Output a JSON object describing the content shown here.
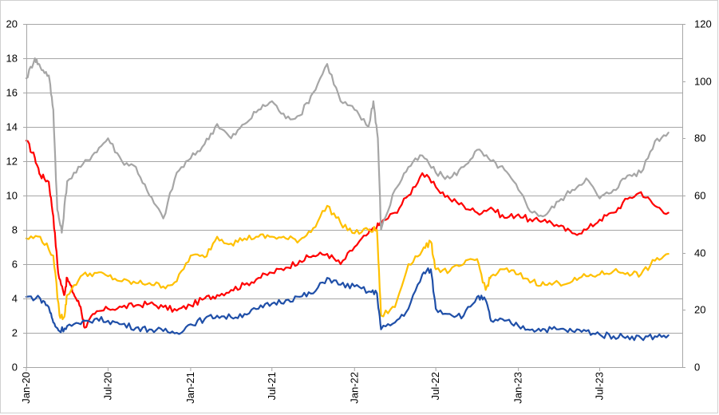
{
  "chart_data": {
    "type": "line",
    "grid": true,
    "legend": "none",
    "x_tick_labels": [
      "Jan-20",
      "Jul-20",
      "Jan-21",
      "Jul-21",
      "Jan-22",
      "Jul-22",
      "Jan-23",
      "Jul-23"
    ],
    "x_tick_dates": [
      "2020-01",
      "2020-07",
      "2021-01",
      "2021-07",
      "2022-01",
      "2022-07",
      "2023-01",
      "2023-07"
    ],
    "xlim": [
      "2020-01",
      "2023-12"
    ],
    "y_left": {
      "min": 0,
      "max": 20,
      "step": 2,
      "ticks": [
        "0",
        "2",
        "4",
        "6",
        "8",
        "10",
        "12",
        "14",
        "16",
        "18",
        "20"
      ]
    },
    "y_right": {
      "min": 0,
      "max": 120,
      "step": 20,
      "ticks": [
        "0",
        "20",
        "40",
        "60",
        "80",
        "100",
        "120"
      ]
    },
    "series": [
      {
        "color": "#ff0000",
        "axis": "left",
        "points": [
          [
            "2020-01",
            13.2
          ],
          [
            "2020-01-20",
            12.2
          ],
          [
            "2020-02",
            11.2
          ],
          [
            "2020-02-20",
            10.8
          ],
          [
            "2020-03",
            8.8
          ],
          [
            "2020-03-12",
            5.5
          ],
          [
            "2020-03-25",
            4.2
          ],
          [
            "2020-04",
            5.2
          ],
          [
            "2020-04-15",
            4.3
          ],
          [
            "2020-05",
            3.5
          ],
          [
            "2020-05-10",
            2.3
          ],
          [
            "2020-06",
            3.1
          ],
          [
            "2020-07",
            3.4
          ],
          [
            "2020-08",
            3.5
          ],
          [
            "2020-09",
            3.6
          ],
          [
            "2020-10",
            3.7
          ],
          [
            "2020-11",
            3.5
          ],
          [
            "2020-12",
            3.3
          ],
          [
            "2021-01",
            3.6
          ],
          [
            "2021-02",
            4.0
          ],
          [
            "2021-03",
            4.2
          ],
          [
            "2021-04",
            4.5
          ],
          [
            "2021-05",
            4.8
          ],
          [
            "2021-06",
            5.2
          ],
          [
            "2021-07",
            5.5
          ],
          [
            "2021-08",
            5.8
          ],
          [
            "2021-09",
            6.2
          ],
          [
            "2021-10",
            6.5
          ],
          [
            "2021-11",
            6.6
          ],
          [
            "2021-12",
            6.0
          ],
          [
            "2022-01",
            7.0
          ],
          [
            "2022-02",
            7.8
          ],
          [
            "2022-02-20",
            8.2
          ],
          [
            "2022-03",
            8.4
          ],
          [
            "2022-04",
            9.0
          ],
          [
            "2022-05",
            10.0
          ],
          [
            "2022-06",
            11.3
          ],
          [
            "2022-07",
            10.5
          ],
          [
            "2022-08",
            9.8
          ],
          [
            "2022-09",
            9.4
          ],
          [
            "2022-10",
            9.0
          ],
          [
            "2022-11",
            9.3
          ],
          [
            "2022-12",
            8.7
          ],
          [
            "2023-01",
            8.9
          ],
          [
            "2023-02",
            8.5
          ],
          [
            "2023-03",
            8.6
          ],
          [
            "2023-04",
            8.2
          ],
          [
            "2023-05",
            7.8
          ],
          [
            "2023-06",
            8.0
          ],
          [
            "2023-07",
            8.6
          ],
          [
            "2023-08",
            9.0
          ],
          [
            "2023-09",
            9.8
          ],
          [
            "2023-10",
            10.2
          ],
          [
            "2023-11",
            9.4
          ],
          [
            "2023-12",
            9.0
          ]
        ]
      },
      {
        "color": "#a6a6a6",
        "axis": "right",
        "points": [
          [
            "2020-01",
            101
          ],
          [
            "2020-01-20",
            108
          ],
          [
            "2020-02",
            105
          ],
          [
            "2020-02-20",
            102
          ],
          [
            "2020-03",
            90
          ],
          [
            "2020-03-10",
            55
          ],
          [
            "2020-03-20",
            47
          ],
          [
            "2020-04",
            65
          ],
          [
            "2020-05",
            70
          ],
          [
            "2020-06",
            75
          ],
          [
            "2020-07",
            80
          ],
          [
            "2020-08",
            72
          ],
          [
            "2020-09",
            70
          ],
          [
            "2020-10",
            60
          ],
          [
            "2020-11",
            52
          ],
          [
            "2020-12",
            68
          ],
          [
            "2021-01",
            73
          ],
          [
            "2021-02",
            78
          ],
          [
            "2021-03",
            85
          ],
          [
            "2021-04",
            80
          ],
          [
            "2021-05",
            85
          ],
          [
            "2021-06",
            90
          ],
          [
            "2021-07",
            93
          ],
          [
            "2021-08",
            87
          ],
          [
            "2021-09",
            88
          ],
          [
            "2021-10",
            96
          ],
          [
            "2021-11",
            106
          ],
          [
            "2021-12",
            93
          ],
          [
            "2022-01",
            90
          ],
          [
            "2022-02",
            84
          ],
          [
            "2022-02-12",
            93
          ],
          [
            "2022-02-22",
            80
          ],
          [
            "2022-03",
            48
          ],
          [
            "2022-04",
            62
          ],
          [
            "2022-05",
            70
          ],
          [
            "2022-06",
            74
          ],
          [
            "2022-07",
            68
          ],
          [
            "2022-08",
            66
          ],
          [
            "2022-09",
            70
          ],
          [
            "2022-10",
            76
          ],
          [
            "2022-11",
            72
          ],
          [
            "2022-12",
            69
          ],
          [
            "2023-01",
            62
          ],
          [
            "2023-02",
            54
          ],
          [
            "2023-03",
            53
          ],
          [
            "2023-04",
            58
          ],
          [
            "2023-05",
            62
          ],
          [
            "2023-06",
            66
          ],
          [
            "2023-07",
            59
          ],
          [
            "2023-08",
            62
          ],
          [
            "2023-09",
            67
          ],
          [
            "2023-10",
            68
          ],
          [
            "2023-11",
            79
          ],
          [
            "2023-12",
            82
          ]
        ]
      },
      {
        "color": "#ffc000",
        "axis": "left",
        "points": [
          [
            "2020-01",
            7.5
          ],
          [
            "2020-02",
            7.6
          ],
          [
            "2020-03",
            6.5
          ],
          [
            "2020-03-15",
            3.0
          ],
          [
            "2020-03-25",
            2.9
          ],
          [
            "2020-04",
            4.2
          ],
          [
            "2020-05",
            5.3
          ],
          [
            "2020-06",
            5.5
          ],
          [
            "2020-07",
            5.3
          ],
          [
            "2020-08",
            5.0
          ],
          [
            "2020-09",
            4.9
          ],
          [
            "2020-10",
            4.9
          ],
          [
            "2020-11",
            4.7
          ],
          [
            "2020-12",
            5.0
          ],
          [
            "2021-01",
            6.5
          ],
          [
            "2021-02",
            6.4
          ],
          [
            "2021-03",
            7.6
          ],
          [
            "2021-04",
            7.2
          ],
          [
            "2021-05",
            7.5
          ],
          [
            "2021-06",
            7.6
          ],
          [
            "2021-07",
            7.6
          ],
          [
            "2021-08",
            7.5
          ],
          [
            "2021-09",
            7.4
          ],
          [
            "2021-10",
            8.1
          ],
          [
            "2021-11",
            9.4
          ],
          [
            "2021-12",
            8.4
          ],
          [
            "2022-01",
            7.8
          ],
          [
            "2022-02",
            8.0
          ],
          [
            "2022-02-20",
            8.0
          ],
          [
            "2022-03",
            3.0
          ],
          [
            "2022-04",
            3.5
          ],
          [
            "2022-05",
            6.0
          ],
          [
            "2022-06",
            6.8
          ],
          [
            "2022-06-20",
            7.3
          ],
          [
            "2022-07",
            5.7
          ],
          [
            "2022-08",
            5.6
          ],
          [
            "2022-09",
            6.0
          ],
          [
            "2022-10",
            6.3
          ],
          [
            "2022-10-20",
            4.5
          ],
          [
            "2022-11",
            5.3
          ],
          [
            "2022-12",
            5.7
          ],
          [
            "2023-01",
            5.4
          ],
          [
            "2023-02",
            5.0
          ],
          [
            "2023-03",
            4.8
          ],
          [
            "2023-04",
            4.9
          ],
          [
            "2023-05",
            5.0
          ],
          [
            "2023-06",
            5.3
          ],
          [
            "2023-07",
            5.4
          ],
          [
            "2023-08",
            5.6
          ],
          [
            "2023-09",
            5.5
          ],
          [
            "2023-10",
            5.4
          ],
          [
            "2023-11",
            6.2
          ],
          [
            "2023-12",
            6.6
          ]
        ]
      },
      {
        "color": "#1f4fa8",
        "axis": "left",
        "points": [
          [
            "2020-01",
            4.1
          ],
          [
            "2020-02",
            4.0
          ],
          [
            "2020-02-20",
            3.5
          ],
          [
            "2020-03",
            2.6
          ],
          [
            "2020-03-15",
            2.1
          ],
          [
            "2020-04",
            2.4
          ],
          [
            "2020-05",
            2.5
          ],
          [
            "2020-06",
            2.8
          ],
          [
            "2020-07",
            2.7
          ],
          [
            "2020-08",
            2.5
          ],
          [
            "2020-09",
            2.3
          ],
          [
            "2020-10",
            2.2
          ],
          [
            "2020-11",
            2.1
          ],
          [
            "2020-12",
            2.0
          ],
          [
            "2021-01",
            2.5
          ],
          [
            "2021-02",
            2.8
          ],
          [
            "2021-03",
            3.0
          ],
          [
            "2021-04",
            2.9
          ],
          [
            "2021-05",
            3.1
          ],
          [
            "2021-06",
            3.4
          ],
          [
            "2021-07",
            3.7
          ],
          [
            "2021-08",
            3.9
          ],
          [
            "2021-09",
            4.1
          ],
          [
            "2021-10",
            4.3
          ],
          [
            "2021-11",
            5.2
          ],
          [
            "2021-12",
            4.8
          ],
          [
            "2022-01",
            4.7
          ],
          [
            "2022-02",
            4.4
          ],
          [
            "2022-02-20",
            4.3
          ],
          [
            "2022-03",
            2.2
          ],
          [
            "2022-04",
            2.6
          ],
          [
            "2022-05",
            3.4
          ],
          [
            "2022-06",
            5.4
          ],
          [
            "2022-06-20",
            5.7
          ],
          [
            "2022-07",
            3.4
          ],
          [
            "2022-08",
            3.1
          ],
          [
            "2022-09",
            3.0
          ],
          [
            "2022-10",
            4.1
          ],
          [
            "2022-10-20",
            3.9
          ],
          [
            "2022-11",
            2.7
          ],
          [
            "2022-12",
            2.7
          ],
          [
            "2023-01",
            2.4
          ],
          [
            "2023-02",
            2.2
          ],
          [
            "2023-03",
            2.2
          ],
          [
            "2023-04",
            2.2
          ],
          [
            "2023-05",
            2.1
          ],
          [
            "2023-06",
            2.1
          ],
          [
            "2023-07",
            1.9
          ],
          [
            "2023-08",
            1.8
          ],
          [
            "2023-09",
            1.8
          ],
          [
            "2023-10",
            1.7
          ],
          [
            "2023-11",
            1.8
          ],
          [
            "2023-12",
            1.85
          ]
        ]
      }
    ]
  }
}
